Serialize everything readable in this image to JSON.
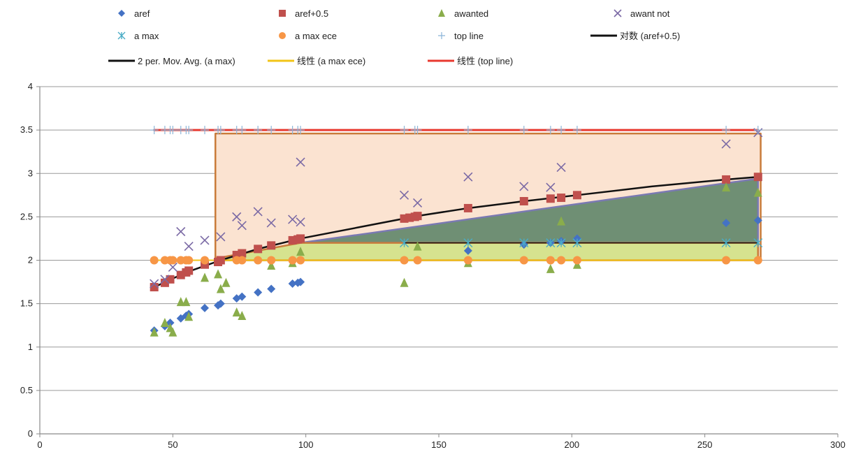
{
  "chart_data": {
    "type": "scatter",
    "xlim": [
      0,
      300
    ],
    "ylim": [
      0,
      4
    ],
    "x_ticks": [
      "0",
      "50",
      "100",
      "150",
      "200",
      "250",
      "300"
    ],
    "y_ticks": [
      "0",
      "0.5",
      "1",
      "1.5",
      "2",
      "2.5",
      "3",
      "3.5",
      "4"
    ],
    "grid": "horizontal",
    "legend_position": "top",
    "series": [
      {
        "name": "aref",
        "kind": "scatter",
        "marker": "diamond",
        "color": "#4472c4",
        "points": [
          [
            43,
            1.19
          ],
          [
            47,
            1.24
          ],
          [
            49,
            1.28
          ],
          [
            53,
            1.33
          ],
          [
            55,
            1.36
          ],
          [
            56,
            1.38
          ],
          [
            62,
            1.45
          ],
          [
            67,
            1.48
          ],
          [
            68,
            1.5
          ],
          [
            74,
            1.56
          ],
          [
            76,
            1.58
          ],
          [
            82,
            1.63
          ],
          [
            87,
            1.67
          ],
          [
            95,
            1.73
          ],
          [
            97,
            1.74
          ],
          [
            98,
            1.75
          ],
          [
            161,
            2.11
          ],
          [
            182,
            2.18
          ],
          [
            192,
            2.2
          ],
          [
            196,
            2.22
          ],
          [
            202,
            2.25
          ],
          [
            258,
            2.43
          ],
          [
            270,
            2.46
          ]
        ]
      },
      {
        "name": "aref+0.5",
        "kind": "scatter",
        "marker": "square",
        "color": "#c0504d",
        "points": [
          [
            43,
            1.69
          ],
          [
            47,
            1.74
          ],
          [
            49,
            1.78
          ],
          [
            53,
            1.83
          ],
          [
            55,
            1.86
          ],
          [
            56,
            1.88
          ],
          [
            62,
            1.95
          ],
          [
            67,
            1.98
          ],
          [
            68,
            2.0
          ],
          [
            74,
            2.06
          ],
          [
            76,
            2.08
          ],
          [
            82,
            2.13
          ],
          [
            87,
            2.17
          ],
          [
            95,
            2.23
          ],
          [
            97,
            2.24
          ],
          [
            98,
            2.25
          ],
          [
            137,
            2.48
          ],
          [
            139,
            2.49
          ],
          [
            141,
            2.5
          ],
          [
            142,
            2.51
          ],
          [
            161,
            2.6
          ],
          [
            182,
            2.68
          ],
          [
            192,
            2.71
          ],
          [
            196,
            2.72
          ],
          [
            202,
            2.75
          ],
          [
            258,
            2.93
          ],
          [
            270,
            2.96
          ]
        ]
      },
      {
        "name": "awanted",
        "kind": "scatter",
        "marker": "triangle",
        "color": "#8aad4b",
        "points": [
          [
            43,
            1.17
          ],
          [
            47,
            1.28
          ],
          [
            49,
            1.22
          ],
          [
            50,
            1.17
          ],
          [
            53,
            1.52
          ],
          [
            55,
            1.52
          ],
          [
            56,
            1.35
          ],
          [
            62,
            1.8
          ],
          [
            67,
            1.84
          ],
          [
            68,
            1.67
          ],
          [
            70,
            1.74
          ],
          [
            74,
            1.4
          ],
          [
            76,
            1.36
          ],
          [
            87,
            1.94
          ],
          [
            95,
            1.97
          ],
          [
            98,
            2.1
          ],
          [
            137,
            1.74
          ],
          [
            142,
            2.16
          ],
          [
            161,
            1.97
          ],
          [
            192,
            1.9
          ],
          [
            196,
            2.45
          ],
          [
            202,
            1.95
          ],
          [
            258,
            2.84
          ],
          [
            270,
            2.78
          ]
        ]
      },
      {
        "name": "awant not",
        "kind": "scatter",
        "marker": "x",
        "color": "#7b6aa5",
        "points": [
          [
            43,
            1.73
          ],
          [
            47,
            1.78
          ],
          [
            50,
            1.92
          ],
          [
            53,
            2.33
          ],
          [
            56,
            2.16
          ],
          [
            62,
            2.23
          ],
          [
            68,
            2.27
          ],
          [
            74,
            2.5
          ],
          [
            76,
            2.4
          ],
          [
            82,
            2.56
          ],
          [
            87,
            2.43
          ],
          [
            95,
            2.47
          ],
          [
            98,
            2.44
          ],
          [
            98,
            3.13
          ],
          [
            137,
            2.75
          ],
          [
            142,
            2.66
          ],
          [
            161,
            2.96
          ],
          [
            182,
            2.85
          ],
          [
            192,
            2.84
          ],
          [
            196,
            3.07
          ],
          [
            258,
            3.34
          ],
          [
            270,
            3.47
          ]
        ]
      },
      {
        "name": "a max",
        "kind": "scatter",
        "marker": "asterisk",
        "color": "#4bacc6",
        "points": [
          [
            137,
            2.2
          ],
          [
            161,
            2.2
          ],
          [
            182,
            2.2
          ],
          [
            192,
            2.2
          ],
          [
            196,
            2.2
          ],
          [
            202,
            2.2
          ],
          [
            258,
            2.2
          ],
          [
            270,
            2.2
          ]
        ]
      },
      {
        "name": "a max ece",
        "kind": "scatter",
        "marker": "circle",
        "color": "#f79646",
        "points": [
          [
            43,
            2.0
          ],
          [
            47,
            2.0
          ],
          [
            49,
            2.0
          ],
          [
            50,
            2.0
          ],
          [
            53,
            2.0
          ],
          [
            55,
            2.0
          ],
          [
            56,
            2.0
          ],
          [
            62,
            2.0
          ],
          [
            74,
            2.0
          ],
          [
            76,
            2.0
          ],
          [
            82,
            2.0
          ],
          [
            87,
            2.0
          ],
          [
            95,
            2.0
          ],
          [
            98,
            2.0
          ],
          [
            137,
            2.0
          ],
          [
            142,
            2.0
          ],
          [
            161,
            2.0
          ],
          [
            182,
            2.0
          ],
          [
            192,
            2.0
          ],
          [
            196,
            2.0
          ],
          [
            202,
            2.0
          ],
          [
            258,
            2.0
          ],
          [
            270,
            2.0
          ]
        ]
      },
      {
        "name": "top line",
        "kind": "scatter",
        "marker": "plus",
        "color": "#8ab4d8",
        "points": [
          [
            43,
            3.5
          ],
          [
            47,
            3.5
          ],
          [
            49,
            3.5
          ],
          [
            50,
            3.5
          ],
          [
            53,
            3.5
          ],
          [
            55,
            3.5
          ],
          [
            56,
            3.5
          ],
          [
            62,
            3.5
          ],
          [
            67,
            3.5
          ],
          [
            68,
            3.5
          ],
          [
            74,
            3.5
          ],
          [
            76,
            3.5
          ],
          [
            82,
            3.5
          ],
          [
            87,
            3.5
          ],
          [
            95,
            3.5
          ],
          [
            97,
            3.5
          ],
          [
            98,
            3.5
          ],
          [
            137,
            3.5
          ],
          [
            141,
            3.5
          ],
          [
            142,
            3.5
          ],
          [
            161,
            3.5
          ],
          [
            182,
            3.5
          ],
          [
            192,
            3.5
          ],
          [
            196,
            3.5
          ],
          [
            202,
            3.5
          ],
          [
            258,
            3.5
          ],
          [
            270,
            3.5
          ]
        ]
      },
      {
        "name": "对数 (aref+0.5)",
        "kind": "trendline",
        "color": "#111111",
        "width": 2.5,
        "points": [
          [
            43,
            1.69
          ],
          [
            55,
            1.86
          ],
          [
            68,
            2.0
          ],
          [
            82,
            2.13
          ],
          [
            98,
            2.25
          ],
          [
            120,
            2.38
          ],
          [
            142,
            2.51
          ],
          [
            161,
            2.6
          ],
          [
            182,
            2.68
          ],
          [
            202,
            2.75
          ],
          [
            230,
            2.85
          ],
          [
            258,
            2.93
          ],
          [
            270,
            2.96
          ]
        ]
      },
      {
        "name": "2 per. Mov. Avg. (a max)",
        "kind": "trendline",
        "color": "#111111",
        "width": 1.5,
        "points": [
          [
            137,
            2.2
          ],
          [
            270,
            2.2
          ]
        ]
      },
      {
        "name": "线性 (a max ece)",
        "kind": "trendline",
        "color": "#f2c417",
        "width": 2,
        "points": [
          [
            43,
            2.0
          ],
          [
            270,
            2.0
          ]
        ]
      },
      {
        "name": "线性 (top line)",
        "kind": "trendline",
        "color": "#e8392f",
        "width": 3,
        "points": [
          [
            43,
            3.5
          ],
          [
            270,
            3.5
          ]
        ]
      }
    ],
    "shaded_regions": [
      {
        "name": "peach-box",
        "fill": "#fbe3d1",
        "stroke": "#c97b3a",
        "polygon": [
          [
            66,
            2.0
          ],
          [
            66,
            3.46
          ],
          [
            271,
            3.46
          ],
          [
            271,
            2.0
          ]
        ]
      },
      {
        "name": "green-triangle",
        "fill": "#6f8f74",
        "stroke": "#7a79b2",
        "polygon": [
          [
            98,
            2.2
          ],
          [
            270,
            2.94
          ],
          [
            270,
            2.2
          ]
        ]
      },
      {
        "name": "yellow-band",
        "fill": "#d6e38f",
        "stroke": "#c97b3a",
        "polygon": [
          [
            66,
            2.0
          ],
          [
            66,
            2.02
          ],
          [
            98,
            2.2
          ],
          [
            270,
            2.2
          ],
          [
            270,
            2.0
          ]
        ]
      }
    ],
    "legend_rows": [
      [
        "aref",
        "aref+0.5",
        "awanted",
        "awant not"
      ],
      [
        "a max",
        "a max ece",
        "top line",
        "对数 (aref+0.5)"
      ],
      [
        "2 per. Mov. Avg. (a max)",
        "线性 (a max ece)",
        "线性 (top line)"
      ]
    ]
  }
}
